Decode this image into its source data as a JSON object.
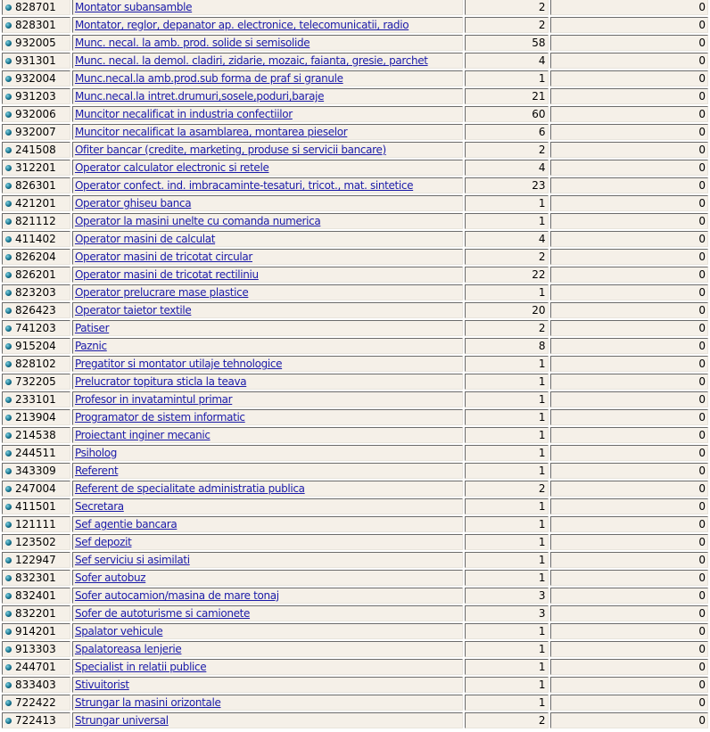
{
  "rows": [
    {
      "code": "828701",
      "name": "Montator subansamble",
      "count": "2",
      "zero": "0"
    },
    {
      "code": "828301",
      "name": "Montator, reglor, depanator ap. electronice, telecomunicatii, radio",
      "count": "2",
      "zero": "0"
    },
    {
      "code": "932005",
      "name": "Munc. necal. la amb. prod. solide si semisolide",
      "count": "58",
      "zero": "0"
    },
    {
      "code": "931301",
      "name": "Munc. necal. la demol. cladiri, zidarie, mozaic, faianta, gresie, parchet",
      "count": "4",
      "zero": "0"
    },
    {
      "code": "932004",
      "name": "Munc.necal.la amb.prod.sub forma de praf si granule",
      "count": "1",
      "zero": "0"
    },
    {
      "code": "931203",
      "name": "Munc.necal.la intret.drumuri,sosele,poduri,baraje",
      "count": "21",
      "zero": "0"
    },
    {
      "code": "932006",
      "name": "Muncitor necalificat in industria confectiilor",
      "count": "60",
      "zero": "0"
    },
    {
      "code": "932007",
      "name": "Muncitor necalificat la asamblarea, montarea pieselor",
      "count": "6",
      "zero": "0"
    },
    {
      "code": "241508",
      "name": "Ofiter bancar (credite, marketing, produse si servicii bancare)",
      "count": "2",
      "zero": "0"
    },
    {
      "code": "312201",
      "name": "Operator calculator electronic si retele",
      "count": "4",
      "zero": "0"
    },
    {
      "code": "826301",
      "name": "Operator confect. ind. imbracaminte-tesaturi, tricot., mat. sintetice",
      "count": "23",
      "zero": "0"
    },
    {
      "code": "421201",
      "name": "Operator ghiseu banca",
      "count": "1",
      "zero": "0"
    },
    {
      "code": "821112",
      "name": "Operator la masini unelte cu comanda numerica",
      "count": "1",
      "zero": "0"
    },
    {
      "code": "411402",
      "name": "Operator masini de calculat",
      "count": "4",
      "zero": "0"
    },
    {
      "code": "826204",
      "name": "Operator masini de tricotat circular",
      "count": "2",
      "zero": "0"
    },
    {
      "code": "826201",
      "name": "Operator masini de tricotat rectiliniu",
      "count": "22",
      "zero": "0"
    },
    {
      "code": "823203",
      "name": "Operator prelucrare mase plastice",
      "count": "1",
      "zero": "0"
    },
    {
      "code": "826423",
      "name": "Operator taietor textile",
      "count": "20",
      "zero": "0"
    },
    {
      "code": "741203",
      "name": "Patiser",
      "count": "2",
      "zero": "0"
    },
    {
      "code": "915204",
      "name": "Paznic",
      "count": "8",
      "zero": "0"
    },
    {
      "code": "828102",
      "name": "Pregatitor si montator utilaje tehnologice",
      "count": "1",
      "zero": "0"
    },
    {
      "code": "732205",
      "name": "Prelucrator topitura sticla la teava",
      "count": "1",
      "zero": "0"
    },
    {
      "code": "233101",
      "name": "Profesor in invatamintul primar",
      "count": "1",
      "zero": "0"
    },
    {
      "code": "213904",
      "name": "Programator de sistem informatic",
      "count": "1",
      "zero": "0"
    },
    {
      "code": "214538",
      "name": "Proiectant inginer mecanic",
      "count": "1",
      "zero": "0"
    },
    {
      "code": "244511",
      "name": "Psiholog",
      "count": "1",
      "zero": "0"
    },
    {
      "code": "343309",
      "name": "Referent",
      "count": "1",
      "zero": "0"
    },
    {
      "code": "247004",
      "name": "Referent de specialitate administratia publica",
      "count": "2",
      "zero": "0"
    },
    {
      "code": "411501",
      "name": "Secretara",
      "count": "1",
      "zero": "0"
    },
    {
      "code": "121111",
      "name": "Sef agentie bancara",
      "count": "1",
      "zero": "0"
    },
    {
      "code": "123502",
      "name": "Sef depozit",
      "count": "1",
      "zero": "0"
    },
    {
      "code": "122947",
      "name": "Sef serviciu si asimilati",
      "count": "1",
      "zero": "0"
    },
    {
      "code": "832301",
      "name": "Sofer autobuz",
      "count": "1",
      "zero": "0"
    },
    {
      "code": "832401",
      "name": "Sofer autocamion/masina de mare tonaj",
      "count": "3",
      "zero": "0"
    },
    {
      "code": "832201",
      "name": "Sofer de autoturisme si camionete",
      "count": "3",
      "zero": "0"
    },
    {
      "code": "914201",
      "name": "Spalator vehicule",
      "count": "1",
      "zero": "0"
    },
    {
      "code": "913303",
      "name": "Spalatoreasa lenjerie",
      "count": "1",
      "zero": "0"
    },
    {
      "code": "244701",
      "name": "Specialist in relatii publice",
      "count": "1",
      "zero": "0"
    },
    {
      "code": "833403",
      "name": "Stivuitorist",
      "count": "1",
      "zero": "0"
    },
    {
      "code": "722422",
      "name": "Strungar la masini orizontale",
      "count": "1",
      "zero": "0"
    },
    {
      "code": "722413",
      "name": "Strungar universal",
      "count": "2",
      "zero": "0"
    }
  ],
  "colors": {
    "cell_bg": "#f5f0e8",
    "link": "#1a1aa8",
    "bullet": "#0e6a86"
  },
  "icons": {
    "row_bullet": "bullet-icon"
  }
}
